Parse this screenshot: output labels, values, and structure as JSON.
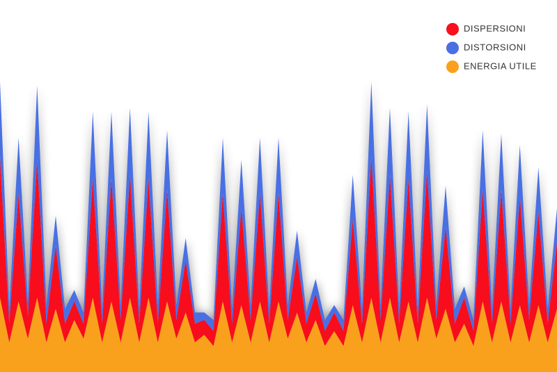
{
  "chart_data": {
    "type": "stacked-area",
    "ylim": [
      0,
      100
    ],
    "legend": "top-right",
    "series": [
      {
        "name": "DISPERSIONI",
        "color": "#f8101c",
        "values": [
          38,
          5,
          29,
          6,
          37,
          5,
          17,
          5,
          5,
          4,
          32,
          5,
          33,
          6,
          33,
          5,
          32,
          5,
          30,
          5,
          14,
          5,
          4,
          4,
          29,
          5,
          26,
          6,
          29,
          5,
          29,
          5,
          15,
          5,
          7,
          4,
          5,
          4,
          23,
          5,
          38,
          6,
          33,
          5,
          33,
          5,
          34,
          5,
          22,
          5,
          7,
          4,
          30,
          5,
          30,
          5,
          29,
          6,
          25,
          5,
          18
        ]
      },
      {
        "name": "DISTORSIONI",
        "color": "#4a6fe3",
        "values": [
          20,
          4,
          15,
          4,
          20,
          5,
          8,
          4,
          3,
          3,
          18,
          4,
          18,
          4,
          18,
          4,
          18,
          5,
          16,
          4,
          6,
          3,
          2,
          3,
          15,
          4,
          13,
          4,
          15,
          4,
          15,
          4,
          7,
          3,
          4,
          3,
          2,
          3,
          12,
          4,
          20,
          4,
          18,
          4,
          18,
          4,
          18,
          4,
          11,
          4,
          3,
          3,
          16,
          4,
          15,
          4,
          14,
          4,
          12,
          4,
          9
        ]
      },
      {
        "name": "ENERGIA UTILE",
        "color": "#f9a11f",
        "values": [
          20,
          8,
          19,
          9,
          20,
          8,
          17,
          8,
          14,
          9,
          20,
          8,
          19,
          8,
          20,
          8,
          20,
          8,
          19,
          9,
          16,
          8,
          10,
          7,
          19,
          8,
          18,
          8,
          19,
          8,
          19,
          9,
          16,
          8,
          14,
          7,
          11,
          7,
          18,
          8,
          20,
          8,
          20,
          8,
          19,
          8,
          20,
          9,
          17,
          8,
          13,
          7,
          19,
          8,
          19,
          8,
          18,
          8,
          18,
          8,
          17
        ]
      }
    ]
  }
}
